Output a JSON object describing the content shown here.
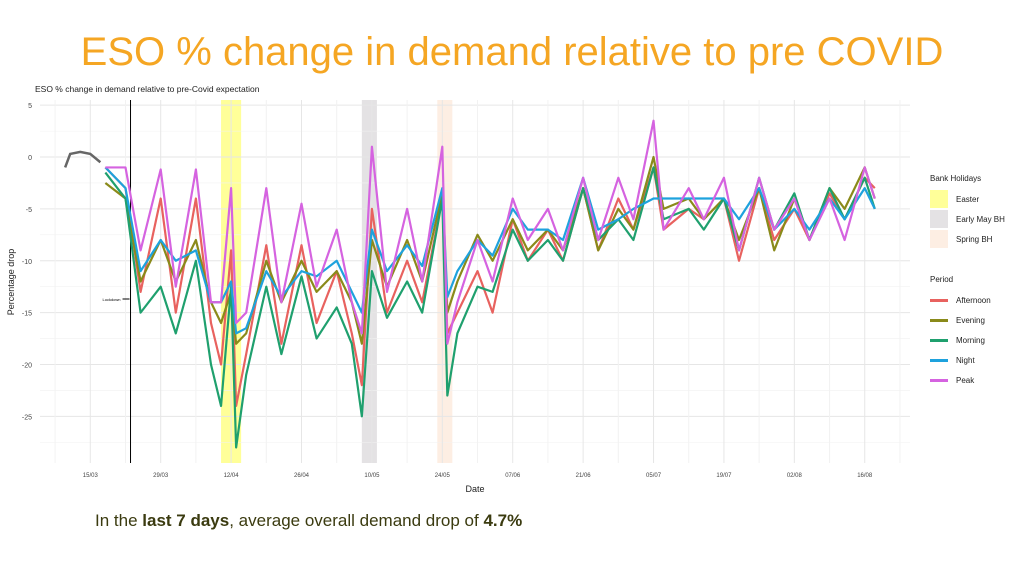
{
  "slide": {
    "title": "ESO % change in demand relative to pre COVID"
  },
  "footer": {
    "prefix": "In the ",
    "bold1": "last 7 days",
    "middle": ", average overall demand drop of ",
    "bold2": "4.7%"
  },
  "chart_data": {
    "type": "line",
    "title": "ESO % change in demand relative to pre-Covid expectation",
    "xlabel": "Date",
    "ylabel": "Percentage drop",
    "ylim": [
      -29.5,
      5.5
    ],
    "xlim": [
      "05/03",
      "25/08"
    ],
    "yticks": [
      5,
      0,
      -5,
      -10,
      -15,
      -20,
      -25
    ],
    "xticks": [
      "15/03",
      "29/03",
      "12/04",
      "26/04",
      "10/05",
      "24/05",
      "07/06",
      "21/06",
      "05/07",
      "19/07",
      "02/08",
      "16/08"
    ],
    "grid": true,
    "legend": "right",
    "annotation": {
      "label": "Lockdown",
      "date": "23/03"
    },
    "bank_holidays": {
      "title": "Bank Holidays",
      "items": [
        {
          "name": "Easter",
          "from": "10/04",
          "to": "13/04",
          "color": "#ffff99"
        },
        {
          "name": "Early May BH",
          "from": "08/05",
          "to": "10/05",
          "color": "#e4e2e4"
        },
        {
          "name": "Spring BH",
          "from": "23/05",
          "to": "25/05",
          "color": "#fdeee3"
        }
      ]
    },
    "legend_title": "Period",
    "pre_series": {
      "color": "#666666",
      "x": [
        "10/03",
        "11/03",
        "13/03",
        "15/03",
        "17/03"
      ],
      "values": [
        -1,
        0.3,
        0.5,
        0.3,
        -0.5
      ]
    },
    "x": [
      "18/03",
      "22/03",
      "25/03",
      "29/03",
      "01/04",
      "05/04",
      "08/04",
      "10/04",
      "12/04",
      "13/04",
      "15/04",
      "19/04",
      "22/04",
      "26/04",
      "29/04",
      "03/05",
      "06/05",
      "08/05",
      "10/05",
      "13/05",
      "17/05",
      "20/05",
      "24/05",
      "25/05",
      "27/05",
      "31/05",
      "03/06",
      "07/06",
      "10/06",
      "14/06",
      "17/06",
      "21/06",
      "24/06",
      "28/06",
      "01/07",
      "05/07",
      "07/07",
      "12/07",
      "15/07",
      "19/07",
      "22/07",
      "26/07",
      "29/07",
      "02/08",
      "05/08",
      "09/08",
      "12/08",
      "16/08",
      "18/08"
    ],
    "series": [
      {
        "name": "Afternoon",
        "color": "#e8625f",
        "values": [
          -1,
          -3,
          -13,
          -4,
          -15,
          -4,
          -16,
          -20,
          -9,
          -24,
          -19,
          -8.5,
          -18,
          -8.5,
          -16,
          -11,
          -17,
          -22,
          -5,
          -15,
          -10,
          -14,
          -4,
          -17,
          -15,
          -11,
          -15,
          -6,
          -10,
          -7,
          -10,
          -3,
          -9,
          -4,
          -7,
          -1,
          -7,
          -5,
          -6,
          -4,
          -10,
          -3,
          -8,
          -5,
          -8,
          -3.5,
          -6,
          -2,
          -3
        ]
      },
      {
        "name": "Evening",
        "color": "#8a8a1a",
        "values": [
          -2.5,
          -4,
          -12,
          -8,
          -12,
          -8,
          -14,
          -16,
          -13,
          -18,
          -17,
          -10,
          -14,
          -10,
          -13,
          -11,
          -14,
          -18,
          -8,
          -12.5,
          -8,
          -12,
          -3.5,
          -15,
          -12,
          -7.5,
          -10,
          -6,
          -9,
          -7,
          -9,
          -3,
          -9,
          -5,
          -7,
          0,
          -5,
          -4,
          -6,
          -4,
          -8,
          -3,
          -9,
          -4,
          -8,
          -3,
          -5,
          -1,
          -4
        ]
      },
      {
        "name": "Morning",
        "color": "#1fa06e",
        "values": [
          -1.5,
          -4,
          -15,
          -12.5,
          -17,
          -10,
          -20,
          -24,
          -12.5,
          -28,
          -21,
          -12.5,
          -19,
          -11.5,
          -17.5,
          -14.5,
          -18,
          -25,
          -11,
          -15.5,
          -12,
          -15,
          -4,
          -23,
          -17,
          -12.5,
          -13,
          -7,
          -10,
          -8,
          -10,
          -3,
          -8,
          -6,
          -8,
          -1,
          -6,
          -5,
          -7,
          -4,
          -9,
          -2,
          -7,
          -3.5,
          -8,
          -3,
          -6,
          -2,
          -5
        ]
      },
      {
        "name": "Night",
        "color": "#1ea2dd",
        "values": [
          -1,
          -3,
          -11,
          -8,
          -10,
          -9,
          -14,
          -14,
          -12,
          -17,
          -16.5,
          -11,
          -13.5,
          -11,
          -11.5,
          -10,
          -13,
          -15,
          -7,
          -11,
          -8.5,
          -10.5,
          -3,
          -13.5,
          -11,
          -8,
          -9.5,
          -5,
          -7,
          -7,
          -8,
          -2,
          -7,
          -6,
          -5,
          -4,
          -4,
          -4,
          -4,
          -4,
          -6,
          -3,
          -7,
          -5,
          -7,
          -4,
          -6,
          -3,
          -5
        ]
      },
      {
        "name": "Peak",
        "color": "#d563e0",
        "values": [
          -1,
          -1,
          -9,
          -1.2,
          -12.5,
          -1.2,
          -14,
          -14,
          -3,
          -16,
          -15,
          -3,
          -14,
          -4.5,
          -12.5,
          -7,
          -14,
          -17,
          1,
          -13,
          -5,
          -12,
          1,
          -18,
          -14,
          -8,
          -12,
          -4,
          -8,
          -5,
          -9,
          -2,
          -8,
          -2,
          -6,
          3.5,
          -7,
          -3,
          -6,
          -2,
          -9,
          -2,
          -7,
          -4,
          -8,
          -4,
          -8,
          -1,
          -4
        ]
      }
    ]
  }
}
